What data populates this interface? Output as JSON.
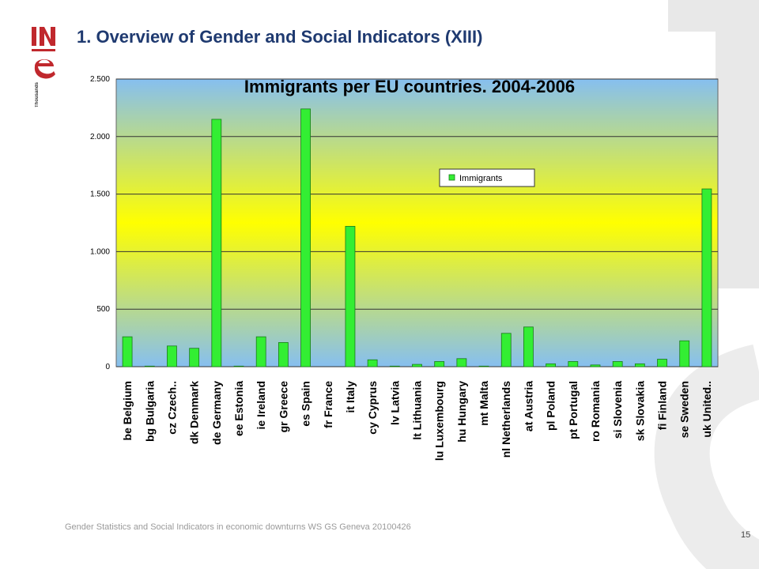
{
  "slide": {
    "title": "1. Overview of Gender and Social Indicators (XIII)",
    "footer": "Gender Statistics and Social Indicators in economic downturns WS GS Geneva 20100426",
    "page_number": "15",
    "logo_text": "INE"
  },
  "colors": {
    "bar_fill": "#33ee33",
    "bar_stroke": "#1a7a1a",
    "title_color": "#1f3a70",
    "plot_top": "#86bff0",
    "plot_middle": "#ffff00",
    "plot_bottom": "#86bff0",
    "logo_red": "#c0282d"
  },
  "chart_data": {
    "type": "bar",
    "title": "Immigrants  per EU countries. 2004-2006",
    "ylabel": "Thousands",
    "xlabel": "",
    "ylim": [
      0,
      2500
    ],
    "yticks": [
      0,
      500,
      1000,
      1500,
      2000,
      2500
    ],
    "ytick_labels": [
      "0",
      "500",
      "1.000",
      "1.500",
      "2.000",
      "2.500"
    ],
    "grid": true,
    "legend": {
      "position": "top-right",
      "entries": [
        "Immigrants"
      ]
    },
    "categories": [
      "be Belgium",
      "bg Bulgaria",
      "cz Czech..",
      "dk Denmark",
      "de Germany",
      "ee Estonia",
      "ie Ireland",
      "gr Greece",
      "es Spain",
      "fr France",
      "it Italy",
      "cy Cyprus",
      "lv Latvia",
      "lt Lithuania",
      "lu Luxembourg",
      "hu Hungary",
      "mt Malta",
      "nl Netherlands",
      "at Austria",
      "pl Poland",
      "pt Portugal",
      "ro Romania",
      "si Slovenia",
      "sk Slovakia",
      "fi Finland",
      "se Sweden",
      "uk United.."
    ],
    "series": [
      {
        "name": "Immigrants",
        "values": [
          260,
          5,
          180,
          160,
          2150,
          5,
          260,
          210,
          2240,
          0,
          1220,
          60,
          5,
          20,
          45,
          70,
          5,
          290,
          345,
          25,
          45,
          15,
          45,
          25,
          65,
          225,
          1545
        ]
      }
    ]
  }
}
